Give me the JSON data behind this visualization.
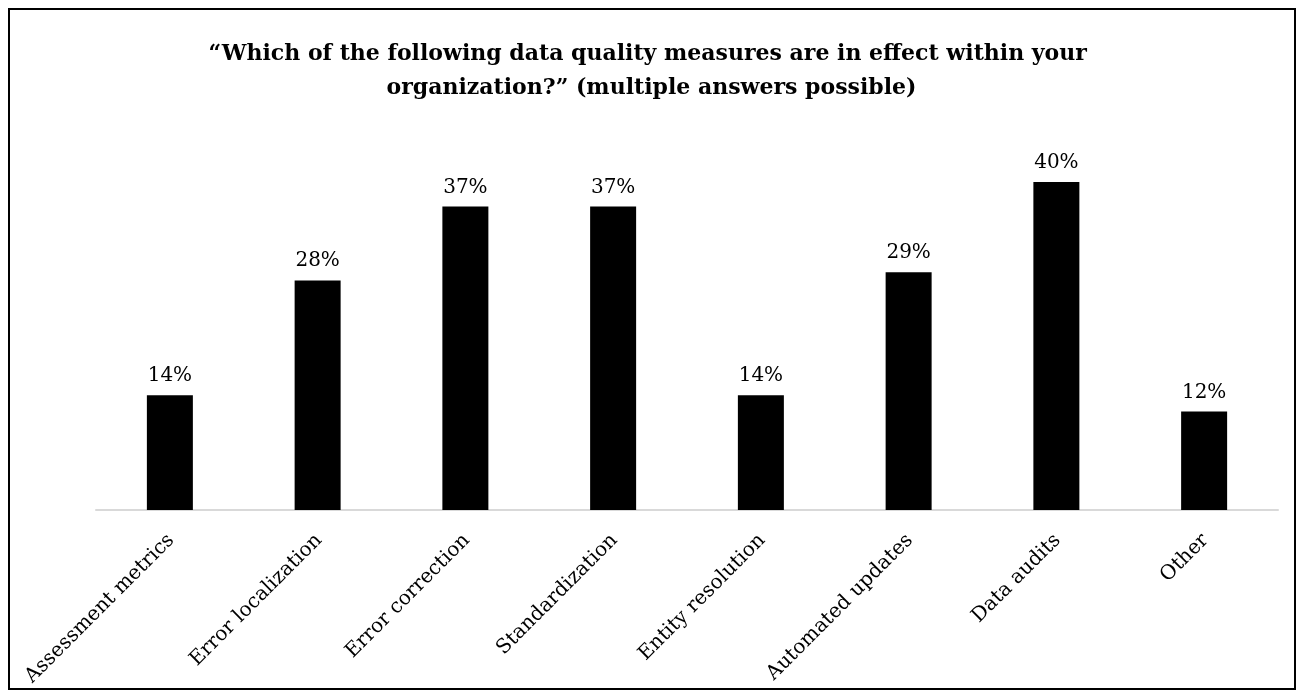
{
  "chart_data": {
    "type": "bar",
    "title": "“Which of the following data quality measures are in effect within your organization?” (multiple answers possible)",
    "categories": [
      "Assessment metrics",
      "Error localization",
      "Error correction",
      "Standardization",
      "Entity resolution",
      "Automated updates",
      "Data audits",
      "Other"
    ],
    "values": [
      14,
      28,
      37,
      37,
      14,
      29,
      40,
      12
    ],
    "color": "#000000",
    "value_labels": [
      "14%",
      "28%",
      "37%",
      "37%",
      "14%",
      "29%",
      "40%",
      "12%"
    ]
  }
}
